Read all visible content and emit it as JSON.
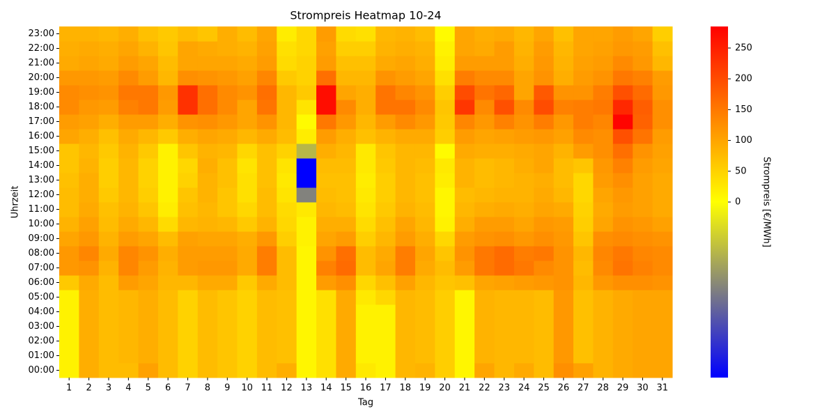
{
  "chart_data": {
    "type": "heatmap",
    "title": "Strompreis Heatmap 10-24",
    "x_label": "Tag",
    "y_label": "Uhrzeit",
    "colorbar_label": "Strompreis [€/MWh]",
    "x": [
      1,
      2,
      3,
      4,
      5,
      6,
      7,
      8,
      9,
      10,
      11,
      12,
      13,
      14,
      15,
      16,
      17,
      18,
      19,
      20,
      21,
      22,
      23,
      24,
      25,
      26,
      27,
      28,
      29,
      30,
      31
    ],
    "y": [
      "00:00",
      "01:00",
      "02:00",
      "03:00",
      "04:00",
      "05:00",
      "06:00",
      "07:00",
      "08:00",
      "09:00",
      "10:00",
      "11:00",
      "12:00",
      "13:00",
      "14:00",
      "15:00",
      "16:00",
      "17:00",
      "18:00",
      "19:00",
      "20:00",
      "21:00",
      "22:00",
      "23:00"
    ],
    "values": [
      [
        15,
        15,
        15,
        15,
        15,
        15,
        60,
        115,
        115,
        100,
        85,
        75,
        75,
        70,
        65,
        65,
        100,
        110,
        130,
        130,
        115,
        95,
        90,
        85
      ],
      [
        90,
        90,
        90,
        90,
        90,
        90,
        95,
        120,
        135,
        115,
        105,
        95,
        90,
        90,
        85,
        80,
        90,
        105,
        115,
        125,
        115,
        100,
        95,
        85
      ],
      [
        75,
        75,
        75,
        75,
        75,
        75,
        75,
        85,
        95,
        85,
        75,
        70,
        60,
        55,
        55,
        60,
        70,
        90,
        110,
        120,
        110,
        95,
        90,
        80
      ],
      [
        75,
        80,
        80,
        80,
        80,
        80,
        110,
        135,
        135,
        110,
        95,
        85,
        80,
        80,
        80,
        85,
        95,
        110,
        140,
        150,
        130,
        110,
        100,
        90
      ],
      [
        105,
        90,
        90,
        90,
        90,
        90,
        100,
        110,
        120,
        100,
        80,
        65,
        55,
        50,
        50,
        60,
        80,
        110,
        150,
        150,
        110,
        100,
        85,
        70
      ],
      [
        75,
        75,
        75,
        75,
        75,
        75,
        80,
        85,
        90,
        75,
        40,
        20,
        15,
        15,
        15,
        15,
        60,
        90,
        110,
        115,
        80,
        75,
        65,
        60
      ],
      [
        50,
        50,
        50,
        50,
        50,
        50,
        80,
        110,
        110,
        105,
        80,
        70,
        65,
        50,
        45,
        65,
        90,
        120,
        230,
        230,
        125,
        100,
        100,
        75
      ],
      [
        75,
        75,
        75,
        75,
        75,
        75,
        95,
        115,
        110,
        100,
        85,
        80,
        85,
        85,
        90,
        85,
        100,
        125,
        160,
        160,
        120,
        100,
        95,
        65
      ],
      [
        65,
        65,
        65,
        65,
        65,
        65,
        95,
        115,
        110,
        100,
        80,
        65,
        65,
        70,
        70,
        80,
        95,
        115,
        130,
        130,
        115,
        100,
        90,
        90
      ],
      [
        50,
        50,
        50,
        50,
        50,
        50,
        60,
        95,
        95,
        90,
        60,
        45,
        35,
        35,
        30,
        45,
        80,
        100,
        100,
        120,
        105,
        95,
        85,
        75
      ],
      [
        75,
        75,
        75,
        75,
        75,
        75,
        95,
        145,
        145,
        115,
        85,
        75,
        75,
        70,
        70,
        70,
        95,
        120,
        155,
        160,
        135,
        110,
        105,
        100
      ],
      [
        90,
        70,
        70,
        70,
        70,
        70,
        75,
        75,
        75,
        55,
        45,
        40,
        30,
        25,
        30,
        50,
        75,
        80,
        80,
        80,
        60,
        40,
        35,
        20
      ],
      [
        10,
        10,
        10,
        10,
        10,
        10,
        10,
        10,
        10,
        15,
        15,
        25,
        -140,
        -285,
        -285,
        -80,
        20,
        5,
        30,
        60,
        50,
        50,
        45,
        45
      ],
      [
        35,
        35,
        35,
        35,
        35,
        35,
        110,
        140,
        120,
        100,
        90,
        80,
        75,
        70,
        75,
        90,
        110,
        150,
        270,
        270,
        160,
        110,
        105,
        110
      ],
      [
        95,
        95,
        95,
        95,
        95,
        95,
        125,
        165,
        160,
        110,
        90,
        75,
        70,
        70,
        75,
        80,
        90,
        115,
        130,
        100,
        80,
        70,
        55,
        40
      ],
      [
        25,
        15,
        15,
        15,
        15,
        25,
        45,
        75,
        75,
        55,
        40,
        30,
        25,
        20,
        25,
        25,
        70,
        80,
        90,
        90,
        80,
        70,
        55,
        35
      ],
      [
        15,
        15,
        15,
        15,
        15,
        45,
        70,
        100,
        95,
        80,
        70,
        60,
        55,
        55,
        60,
        65,
        85,
        110,
        155,
        155,
        120,
        95,
        85,
        80
      ],
      [
        80,
        80,
        80,
        80,
        80,
        80,
        105,
        145,
        145,
        110,
        100,
        85,
        80,
        80,
        80,
        80,
        95,
        130,
        155,
        135,
        110,
        100,
        90,
        85
      ],
      [
        85,
        75,
        75,
        75,
        75,
        75,
        80,
        95,
        100,
        90,
        80,
        75,
        70,
        70,
        75,
        80,
        95,
        115,
        130,
        120,
        100,
        90,
        85,
        75
      ],
      [
        55,
        55,
        55,
        55,
        55,
        55,
        65,
        75,
        65,
        45,
        15,
        10,
        10,
        20,
        25,
        5,
        55,
        60,
        65,
        55,
        35,
        20,
        15,
        5
      ],
      [
        10,
        10,
        10,
        10,
        10,
        10,
        70,
        110,
        120,
        110,
        90,
        80,
        75,
        85,
        85,
        95,
        110,
        135,
        225,
        200,
        145,
        110,
        100,
        100
      ],
      [
        100,
        85,
        85,
        85,
        85,
        85,
        100,
        150,
        150,
        120,
        110,
        90,
        80,
        75,
        75,
        90,
        100,
        115,
        130,
        155,
        130,
        110,
        95,
        90
      ],
      [
        80,
        80,
        80,
        80,
        80,
        80,
        105,
        165,
        165,
        125,
        110,
        95,
        85,
        80,
        80,
        90,
        105,
        140,
        195,
        170,
        130,
        110,
        110,
        95
      ],
      [
        95,
        80,
        80,
        80,
        80,
        80,
        110,
        150,
        145,
        115,
        100,
        90,
        85,
        85,
        90,
        95,
        110,
        120,
        130,
        100,
        100,
        90,
        85,
        80
      ],
      [
        75,
        75,
        75,
        75,
        75,
        75,
        115,
        130,
        150,
        125,
        115,
        100,
        95,
        90,
        100,
        100,
        115,
        145,
        200,
        185,
        120,
        115,
        110,
        100
      ],
      [
        125,
        115,
        115,
        115,
        115,
        115,
        120,
        120,
        120,
        115,
        110,
        95,
        80,
        75,
        75,
        85,
        105,
        115,
        140,
        120,
        90,
        85,
        80,
        70
      ],
      [
        105,
        70,
        70,
        70,
        70,
        70,
        80,
        75,
        80,
        65,
        55,
        50,
        45,
        45,
        65,
        110,
        130,
        145,
        145,
        120,
        110,
        105,
        100,
        100
      ],
      [
        85,
        85,
        85,
        85,
        85,
        85,
        115,
        130,
        135,
        125,
        100,
        95,
        100,
        110,
        115,
        125,
        125,
        135,
        150,
        145,
        120,
        110,
        105,
        100
      ],
      [
        95,
        95,
        95,
        95,
        95,
        95,
        125,
        155,
        150,
        130,
        120,
        110,
        115,
        125,
        140,
        160,
        195,
        280,
        240,
        195,
        150,
        130,
        115,
        110
      ],
      [
        100,
        100,
        100,
        100,
        100,
        100,
        125,
        140,
        135,
        125,
        115,
        105,
        105,
        105,
        110,
        120,
        155,
        175,
        180,
        165,
        140,
        115,
        110,
        100
      ],
      [
        100,
        100,
        100,
        100,
        100,
        100,
        120,
        130,
        130,
        120,
        105,
        95,
        95,
        95,
        100,
        105,
        110,
        125,
        125,
        115,
        110,
        80,
        70,
        55
      ]
    ],
    "clim": [
      -285,
      285
    ],
    "cticks": [
      0,
      50,
      100,
      150,
      200,
      250
    ],
    "colorscale": [
      {
        "value": -285,
        "color": "#0000ff"
      },
      {
        "value": 0,
        "color": "#ffff00"
      },
      {
        "value": 100,
        "color": "#ffa500"
      },
      {
        "value": 285,
        "color": "#ff0000"
      }
    ]
  }
}
